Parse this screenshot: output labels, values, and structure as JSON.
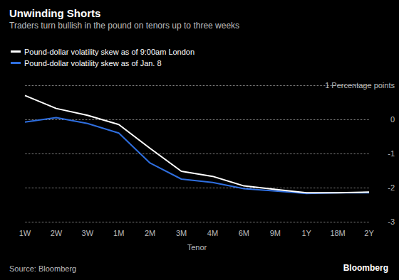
{
  "chart_data": {
    "type": "line",
    "title": "Unwinding Shorts",
    "subtitle": "Traders turn bullish in the pound on tenors up to three weeks",
    "x_label": "Tenor",
    "source": "Source: Bloomberg",
    "credit": "Bloomberg",
    "categories": [
      "1W",
      "2W",
      "3W",
      "1M",
      "2M",
      "3M",
      "4M",
      "6M",
      "9M",
      "1Y",
      "18M",
      "2Y"
    ],
    "series": [
      {
        "name": "Pound-dollar volatility skew as of 9:00am London",
        "color": "#ffffff",
        "values": [
          0.7,
          0.32,
          0.12,
          -0.15,
          -0.85,
          -1.52,
          -1.67,
          -1.95,
          -2.05,
          -2.15,
          -2.15,
          -2.13
        ]
      },
      {
        "name": "Pound-dollar volatility skew as of Jan. 8",
        "color": "#2f6fe0",
        "values": [
          -0.08,
          0.05,
          -0.12,
          -0.4,
          -1.28,
          -1.75,
          -1.85,
          -2.03,
          -2.1,
          -2.17,
          -2.15,
          -2.15
        ]
      }
    ],
    "ylim": [
      -3,
      1
    ],
    "yticks": [
      -3,
      -2,
      -1,
      0,
      {
        "value": 1,
        "label": "1 Percentage points"
      }
    ],
    "grid": true,
    "legend": "top-left"
  }
}
